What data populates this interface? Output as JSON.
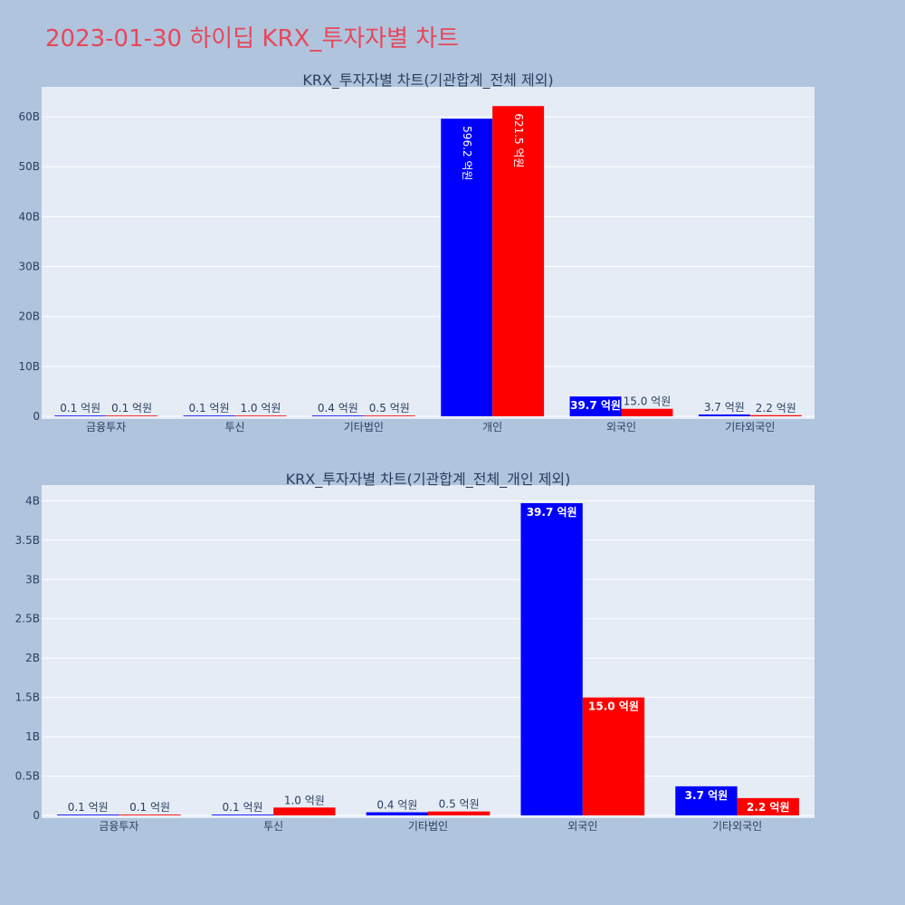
{
  "title": "2023-01-30 하이딥 KRX_투자자별 차트",
  "colors": {
    "background": "#b0c4de",
    "plot_bg": "#e5ecf6",
    "grid": "#ffffff",
    "series_1": "#0000ff",
    "series_2": "#ff0000",
    "title": "#e8475a"
  },
  "chart_data": [
    {
      "type": "bar",
      "title": "KRX_투자자별 차트(기관합계_전체 제외)",
      "categories": [
        "금융투자",
        "투신",
        "기타법인",
        "개인",
        "외국인",
        "기타외국인"
      ],
      "series": [
        {
          "values": [
            10000000,
            10000000,
            40000000,
            59620000000,
            3970000000,
            370000000
          ],
          "labels": [
            "0.1 억원",
            "0.1 억원",
            "0.4 억원",
            "596.2 억원",
            "39.7 억원",
            "3.7 억원"
          ]
        },
        {
          "values": [
            10000000,
            100000000,
            50000000,
            62150000000,
            1500000000,
            220000000
          ],
          "labels": [
            "0.1 억원",
            "1.0 억원",
            "0.5 억원",
            "621.5 억원",
            "15.0 억원",
            "2.2 억원"
          ]
        }
      ],
      "yticks": [
        0,
        10000000000,
        20000000000,
        30000000000,
        40000000000,
        50000000000,
        60000000000
      ],
      "ytick_labels": [
        "0",
        "10B",
        "20B",
        "30B",
        "40B",
        "50B",
        "60B"
      ],
      "ylim": [
        0,
        66000000000
      ],
      "grid": true
    },
    {
      "type": "bar",
      "title": "KRX_투자자별 차트(기관합계_전체_개인 제외)",
      "categories": [
        "금융투자",
        "투신",
        "기타법인",
        "외국인",
        "기타외국인"
      ],
      "series": [
        {
          "values": [
            10000000,
            10000000,
            40000000,
            3970000000,
            370000000
          ],
          "labels": [
            "0.1 억원",
            "0.1 억원",
            "0.4 억원",
            "39.7 억원",
            "3.7 억원"
          ]
        },
        {
          "values": [
            10000000,
            100000000,
            50000000,
            1500000000,
            220000000
          ],
          "labels": [
            "0.1 억원",
            "1.0 억원",
            "0.5 억원",
            "15.0 억원",
            "2.2 억원"
          ]
        }
      ],
      "yticks": [
        0,
        500000000,
        1000000000,
        1500000000,
        2000000000,
        2500000000,
        3000000000,
        3500000000,
        4000000000
      ],
      "ytick_labels": [
        "0",
        "0.5B",
        "1B",
        "1.5B",
        "2B",
        "2.5B",
        "3B",
        "3.5B",
        "4B"
      ],
      "ylim": [
        0,
        4200000000
      ],
      "grid": true
    }
  ]
}
